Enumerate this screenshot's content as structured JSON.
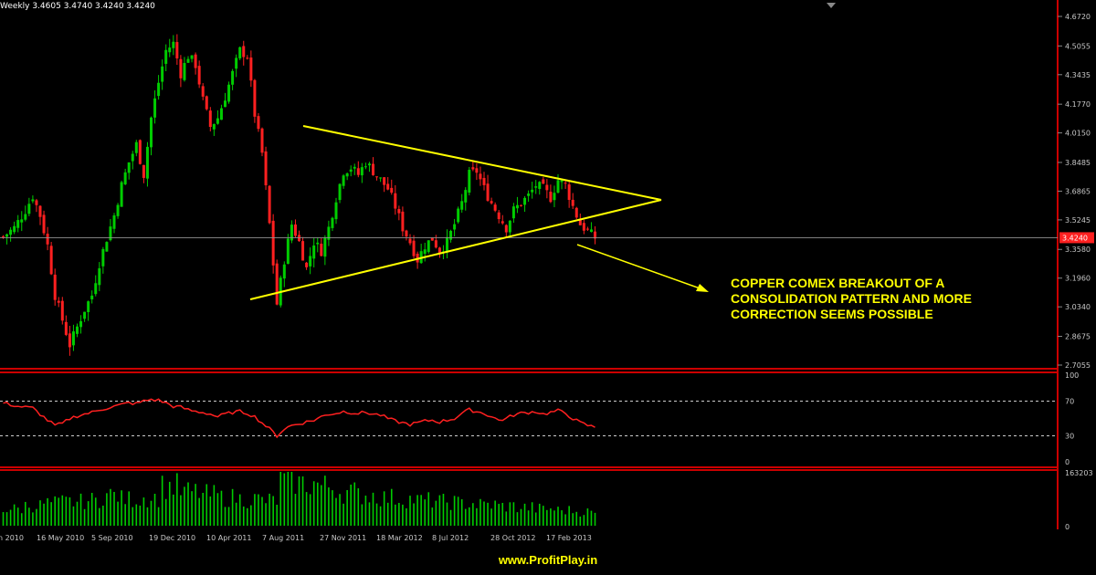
{
  "header": {
    "text": "Weekly  3.4605 3.4740 3.4240 3.4240"
  },
  "annotation": {
    "lines": [
      "COPPER COMEX BREAKOUT OF A",
      "CONSOLIDATION PATTERN AND MORE",
      "CORRECTION SEEMS POSSIBLE"
    ]
  },
  "footer": {
    "site": "www.ProfitPlay.in"
  },
  "colors": {
    "background": "#000000",
    "bull_candle": "#00cc00",
    "bear_candle": "#ff2020",
    "trendline": "#ffff00",
    "panel_border": "#cc0000",
    "rsi_line": "#ff2020",
    "volume_bar": "#00cc00",
    "axis_text": "#c8c8c8",
    "price_tag_bg": "#ff2020"
  },
  "chart_data": [
    {
      "type": "candlestick",
      "title": "",
      "period": "Weekly",
      "ylim": [
        2.7055,
        4.672
      ],
      "y_ticks": [
        "4.6720",
        "4.5055",
        "4.3435",
        "4.1770",
        "4.0150",
        "3.8485",
        "3.6865",
        "3.5245",
        "3.3580",
        "3.1960",
        "3.0340",
        "2.8675",
        "2.7055"
      ],
      "y_tick_values": [
        4.672,
        4.5055,
        4.3435,
        4.177,
        4.015,
        3.8485,
        3.6865,
        3.5245,
        3.358,
        3.196,
        3.034,
        2.8675,
        2.7055
      ],
      "last_price_label": "3.4240",
      "last_price": 3.424,
      "grid": false,
      "ohlc_header": {
        "open": 3.4605,
        "high": 3.474,
        "low": 3.424,
        "close": 3.424
      },
      "x_labels": [
        "n 2010",
        "16 May 2010",
        "5 Sep 2010",
        "19 Dec 2010",
        "10 Apr 2011",
        "7 Aug 2011",
        "27 Nov 2011",
        "18 Mar 2012",
        "8 Jul 2012",
        "28 Oct 2012",
        "17 Feb 2013"
      ],
      "close_path": [
        [
          0,
          3.43
        ],
        [
          3,
          3.48
        ],
        [
          6,
          3.58
        ],
        [
          8,
          3.66
        ],
        [
          10,
          3.55
        ],
        [
          12,
          3.38
        ],
        [
          14,
          3.1
        ],
        [
          16,
          2.96
        ],
        [
          18,
          2.82
        ],
        [
          20,
          2.92
        ],
        [
          22,
          3.02
        ],
        [
          24,
          3.1
        ],
        [
          26,
          3.28
        ],
        [
          28,
          3.42
        ],
        [
          30,
          3.55
        ],
        [
          32,
          3.72
        ],
        [
          34,
          3.85
        ],
        [
          36,
          3.95
        ],
        [
          38,
          3.78
        ],
        [
          40,
          4.1
        ],
        [
          42,
          4.3
        ],
        [
          44,
          4.48
        ],
        [
          46,
          4.52
        ],
        [
          48,
          4.35
        ],
        [
          50,
          4.45
        ],
        [
          52,
          4.4
        ],
        [
          54,
          4.2
        ],
        [
          56,
          4.05
        ],
        [
          58,
          4.1
        ],
        [
          60,
          4.22
        ],
        [
          62,
          4.35
        ],
        [
          64,
          4.48
        ],
        [
          66,
          4.45
        ],
        [
          68,
          4.12
        ],
        [
          70,
          3.9
        ],
        [
          72,
          3.5
        ],
        [
          74,
          3.05
        ],
        [
          76,
          3.3
        ],
        [
          78,
          3.5
        ],
        [
          80,
          3.4
        ],
        [
          82,
          3.25
        ],
        [
          84,
          3.4
        ],
        [
          86,
          3.35
        ],
        [
          88,
          3.48
        ],
        [
          90,
          3.65
        ],
        [
          92,
          3.8
        ],
        [
          94,
          3.82
        ],
        [
          96,
          3.78
        ],
        [
          98,
          3.85
        ],
        [
          100,
          3.8
        ],
        [
          102,
          3.75
        ],
        [
          104,
          3.7
        ],
        [
          106,
          3.6
        ],
        [
          108,
          3.48
        ],
        [
          110,
          3.4
        ],
        [
          112,
          3.3
        ],
        [
          114,
          3.38
        ],
        [
          116,
          3.42
        ],
        [
          118,
          3.35
        ],
        [
          120,
          3.4
        ],
        [
          122,
          3.5
        ],
        [
          124,
          3.62
        ],
        [
          126,
          3.78
        ],
        [
          128,
          3.8
        ],
        [
          130,
          3.7
        ],
        [
          132,
          3.62
        ],
        [
          134,
          3.55
        ],
        [
          136,
          3.48
        ],
        [
          138,
          3.58
        ],
        [
          140,
          3.62
        ],
        [
          142,
          3.66
        ],
        [
          144,
          3.72
        ],
        [
          146,
          3.7
        ],
        [
          148,
          3.65
        ],
        [
          150,
          3.75
        ],
        [
          152,
          3.72
        ],
        [
          154,
          3.6
        ],
        [
          156,
          3.5
        ],
        [
          158,
          3.46
        ],
        [
          160,
          3.424
        ]
      ]
    },
    {
      "type": "line",
      "title": "",
      "ylim": [
        0,
        100
      ],
      "y_ticks": [
        "100",
        "70",
        "30",
        "0"
      ],
      "y_tick_values": [
        100,
        70,
        30,
        0
      ],
      "levels": [
        70,
        30
      ],
      "series": [
        {
          "values_path": [
            [
              0,
              68
            ],
            [
              4,
              64
            ],
            [
              8,
              62
            ],
            [
              10,
              55
            ],
            [
              12,
              48
            ],
            [
              14,
              42
            ],
            [
              16,
              44
            ],
            [
              18,
              50
            ],
            [
              20,
              53
            ],
            [
              22,
              55
            ],
            [
              24,
              57
            ],
            [
              26,
              60
            ],
            [
              28,
              62
            ],
            [
              30,
              64
            ],
            [
              32,
              66
            ],
            [
              34,
              68
            ],
            [
              36,
              67
            ],
            [
              38,
              70
            ],
            [
              40,
              72
            ],
            [
              42,
              71
            ],
            [
              44,
              68
            ],
            [
              46,
              64
            ],
            [
              48,
              63
            ],
            [
              50,
              60
            ],
            [
              52,
              58
            ],
            [
              54,
              57
            ],
            [
              56,
              55
            ],
            [
              58,
              52
            ],
            [
              60,
              55
            ],
            [
              62,
              57
            ],
            [
              64,
              58
            ],
            [
              66,
              56
            ],
            [
              68,
              52
            ],
            [
              70,
              45
            ],
            [
              72,
              38
            ],
            [
              74,
              30
            ],
            [
              76,
              38
            ],
            [
              78,
              42
            ],
            [
              80,
              44
            ],
            [
              82,
              46
            ],
            [
              84,
              48
            ],
            [
              86,
              52
            ],
            [
              88,
              55
            ],
            [
              90,
              56
            ],
            [
              92,
              58
            ],
            [
              94,
              57
            ],
            [
              96,
              56
            ],
            [
              98,
              57
            ],
            [
              100,
              55
            ],
            [
              102,
              54
            ],
            [
              104,
              50
            ],
            [
              106,
              47
            ],
            [
              108,
              45
            ],
            [
              110,
              43
            ],
            [
              112,
              45
            ],
            [
              114,
              47
            ],
            [
              116,
              48
            ],
            [
              118,
              46
            ],
            [
              120,
              48
            ],
            [
              122,
              50
            ],
            [
              124,
              56
            ],
            [
              126,
              60
            ],
            [
              128,
              58
            ],
            [
              130,
              56
            ],
            [
              132,
              52
            ],
            [
              134,
              48
            ],
            [
              136,
              50
            ],
            [
              138,
              54
            ],
            [
              140,
              56
            ],
            [
              142,
              57
            ],
            [
              144,
              58
            ],
            [
              146,
              55
            ],
            [
              148,
              57
            ],
            [
              150,
              59
            ],
            [
              152,
              56
            ],
            [
              154,
              50
            ],
            [
              156,
              45
            ],
            [
              158,
              42
            ],
            [
              160,
              40
            ]
          ]
        }
      ]
    },
    {
      "type": "bar",
      "title": "",
      "ylim": [
        0,
        163203
      ],
      "y_ticks": [
        "163203",
        "0"
      ],
      "y_tick_values": [
        163203,
        0
      ],
      "values_sample": [
        60000,
        72000,
        80000,
        85000,
        90000,
        110000,
        95000,
        100000,
        140000,
        120000,
        110000,
        100000,
        95000,
        90000,
        160000,
        150000,
        140000,
        120000,
        110000,
        100000,
        95000,
        90000,
        85000,
        80000,
        75000,
        70000,
        65000,
        60000,
        55000,
        50000,
        40000
      ]
    }
  ]
}
